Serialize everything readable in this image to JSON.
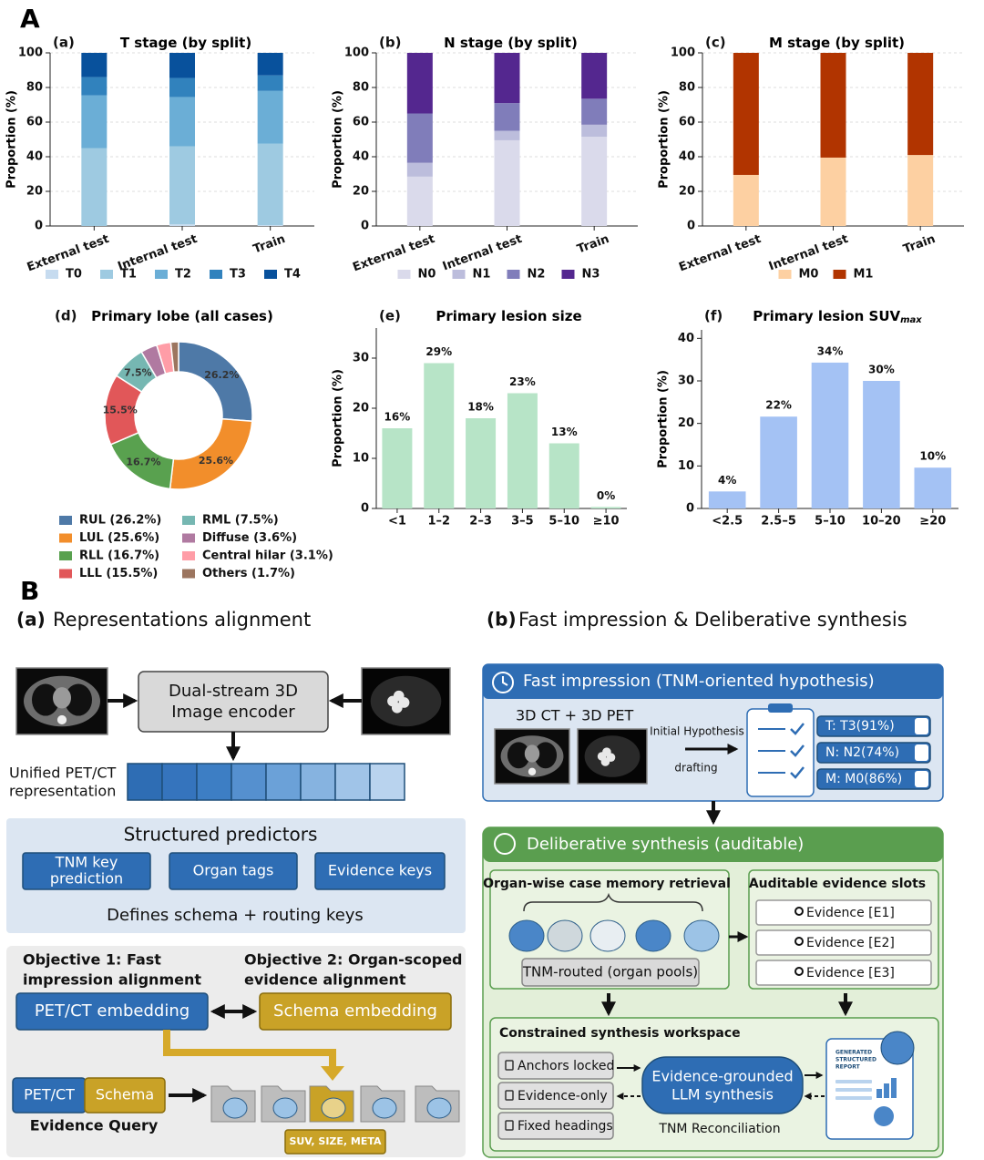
{
  "figure_labels": {
    "A": "A",
    "B": "B"
  },
  "chart_data": [
    {
      "type": "stacked_bar",
      "panel": "(a)",
      "title": "T stage (by split)",
      "y_label": "Proportion (%)",
      "categories": [
        "External test",
        "Internal test",
        "Train"
      ],
      "series": [
        {
          "name": "T0",
          "color": "#c6dbef",
          "values": [
            0,
            1,
            0.5
          ]
        },
        {
          "name": "T1",
          "color": "#9ecae1",
          "values": [
            45,
            45,
            47
          ]
        },
        {
          "name": "T2",
          "color": "#6baed6",
          "values": [
            30.5,
            28.5,
            30.5
          ]
        },
        {
          "name": "T3",
          "color": "#3182bd",
          "values": [
            10.5,
            11,
            9
          ]
        },
        {
          "name": "T4",
          "color": "#08519c",
          "values": [
            14,
            14.5,
            13
          ]
        }
      ],
      "ylim": [
        0,
        100
      ],
      "yticks": [
        0,
        20,
        40,
        60,
        80,
        100
      ],
      "grid": true
    },
    {
      "type": "stacked_bar",
      "panel": "(b)",
      "title": "N stage (by split)",
      "y_label": "Proportion (%)",
      "categories": [
        "External test",
        "Internal test",
        "Train"
      ],
      "series": [
        {
          "name": "N0",
          "color": "#dadaeb",
          "values": [
            28.5,
            49.5,
            51.5
          ]
        },
        {
          "name": "N1",
          "color": "#bcbddc",
          "values": [
            8,
            5.5,
            7
          ]
        },
        {
          "name": "N2",
          "color": "#807dba",
          "values": [
            28.5,
            16,
            15
          ]
        },
        {
          "name": "N3",
          "color": "#54278f",
          "values": [
            35,
            29,
            26.5
          ]
        }
      ],
      "ylim": [
        0,
        100
      ],
      "yticks": [
        0,
        20,
        40,
        60,
        80,
        100
      ],
      "grid": true
    },
    {
      "type": "stacked_bar",
      "panel": "(c)",
      "title": "M stage (by split)",
      "y_label": "Proportion (%)",
      "categories": [
        "External test",
        "Internal test",
        "Train"
      ],
      "series": [
        {
          "name": "M0",
          "color": "#fdd0a2",
          "values": [
            29.5,
            39.5,
            41
          ]
        },
        {
          "name": "M1",
          "color": "#b13400",
          "values": [
            70.5,
            60.5,
            59
          ]
        }
      ],
      "ylim": [
        0,
        100
      ],
      "yticks": [
        0,
        20,
        40,
        60,
        80,
        100
      ],
      "grid": true
    },
    {
      "type": "donut",
      "panel": "(d)",
      "title": "Primary lobe (all cases)",
      "categories": [
        "RUL (26.2%)",
        "LUL (25.6%)",
        "RLL (16.7%)",
        "LLL (15.5%)",
        "RML (7.5%)",
        "Diffuse (3.6%)",
        "Central hilar (3.1%)",
        "Others (1.7%)"
      ],
      "values": [
        26.2,
        25.6,
        16.7,
        15.5,
        7.5,
        3.6,
        3.1,
        1.7
      ],
      "value_labels": [
        "26.2%",
        "25.6%",
        "16.7%",
        "15.5%",
        "7.5%",
        null,
        null,
        null
      ],
      "colors": [
        "#4e79a7",
        "#f28e2b",
        "#59a14f",
        "#e15759",
        "#76b7b2",
        "#b07aa1",
        "#ff9da7",
        "#9c755f"
      ]
    },
    {
      "type": "bar",
      "panel": "(e)",
      "title": "Primary lesion size",
      "y_label": "Proportion (%)",
      "categories": [
        "<1",
        "1–2",
        "2–3",
        "3–5",
        "5–10",
        "≥10"
      ],
      "values": [
        16,
        29,
        18,
        23,
        13,
        0.3
      ],
      "value_labels": [
        "16%",
        "29%",
        "18%",
        "23%",
        "13%",
        "0%"
      ],
      "color": "#b7e4c7",
      "ylim": [
        0,
        36
      ],
      "yticks": [
        0,
        10,
        20,
        30
      ],
      "grid": false
    },
    {
      "type": "bar",
      "panel": "(f)",
      "title": "Primary lesion SUV",
      "title_subscript": "max",
      "y_label": "Proportion (%)",
      "categories": [
        "<2.5",
        "2.5–5",
        "5–10",
        "10–20",
        "≥20"
      ],
      "values": [
        4,
        21.6,
        34.3,
        30,
        9.6
      ],
      "value_labels": [
        "4%",
        "22%",
        "34%",
        "30%",
        "10%"
      ],
      "color": "#a4c2f4",
      "ylim": [
        0,
        42
      ],
      "yticks": [
        0,
        10,
        20,
        30,
        40
      ],
      "grid": false
    }
  ],
  "diagram": {
    "a": {
      "label": "(a)",
      "title": "Representations alignment",
      "encoder": [
        "Dual-stream 3D",
        "Image encoder"
      ],
      "representation": [
        "Unified PET/CT",
        "representation"
      ],
      "predictors_title": "Structured predictors",
      "predictors": [
        [
          "TNM key",
          "prediction"
        ],
        [
          "Organ tags"
        ],
        [
          "Evidence keys"
        ]
      ],
      "predictors_note": "Defines schema + routing keys",
      "objective1": [
        "Objective 1: Fast",
        "impression alignment"
      ],
      "objective2": [
        "Objective 2: Organ-scoped",
        "evidence alignment"
      ],
      "petct_embedding": "PET/CT embedding",
      "schema_embedding": "Schema embedding",
      "query": [
        "PET/CT",
        "Schema"
      ],
      "query_label": "Evidence Query",
      "meta_tag": "SUV, SIZE, META"
    },
    "b": {
      "label": "(b)",
      "title": "Fast impression & Deliberative synthesis",
      "fast_header": "Fast impression (TNM-oriented hypothesis)",
      "inputs": "3D CT + 3D PET",
      "arrow_top": "Initial Hypothesis",
      "arrow_bottom": "drafting",
      "hypotheses": [
        "T: T3(91%)",
        "N: N2(74%)",
        "M: M0(86%)"
      ],
      "deliberative_header": "Deliberative synthesis (auditable)",
      "retrieval": "Organ-wise case memory retrieval",
      "routing": "TNM-routed (organ pools)",
      "slots_title": "Auditable evidence slots",
      "slots": [
        "Evidence [E1]",
        "Evidence [E2]",
        "Evidence [E3]"
      ],
      "workspace": "Constrained synthesis workspace",
      "constraints": [
        "Anchors locked",
        "Evidence-only",
        "Fixed headings"
      ],
      "llm": [
        "Evidence-grounded",
        "LLM synthesis"
      ],
      "reconciliation": "TNM Reconciliation",
      "report": [
        "GENERATED",
        "STRUCTURED",
        "REPORT"
      ]
    }
  }
}
